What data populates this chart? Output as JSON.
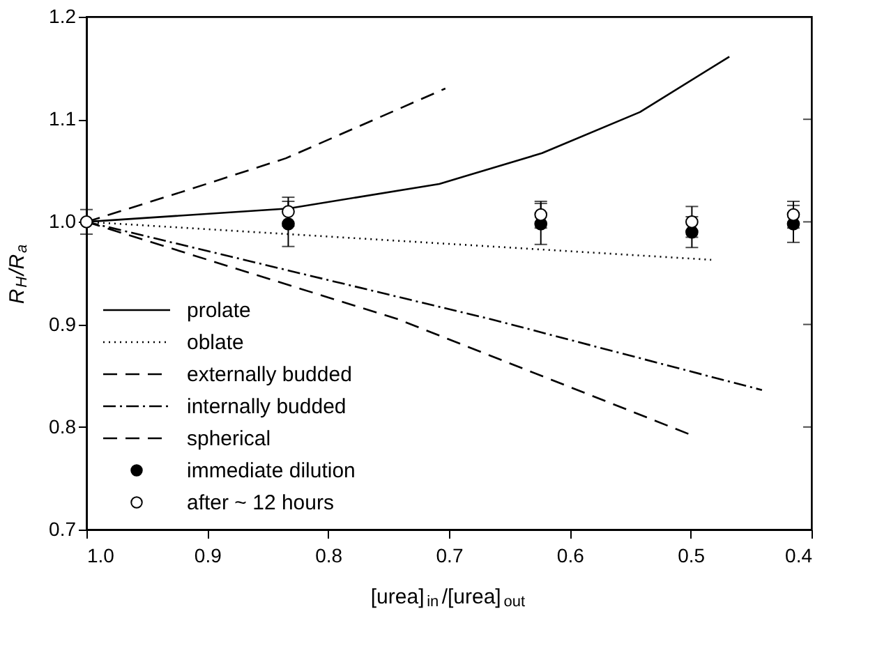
{
  "chart_data": {
    "type": "line",
    "xlabel": "[urea]$_{in}$/[urea]$_{out}$",
    "ylabel": "R$_{H}$/R$_{a}$",
    "xlim": [
      1.0,
      0.4
    ],
    "xticks": [
      {
        "value": 1.0,
        "label": "1.0"
      },
      0.9,
      0.8,
      0.7,
      0.6,
      0.5,
      0.4
    ],
    "ylim": [
      0.7,
      1.2
    ],
    "yticks": [
      0.7,
      0.8,
      0.9,
      {
        "value": 1.0,
        "label": "1.0"
      },
      1.1,
      1.2
    ],
    "grid": false,
    "legend": "bottom left",
    "series": [
      {
        "name": "prolate",
        "type": "line",
        "line_style": "solid",
        "color": "#000000",
        "x": [
          1.0,
          0.833,
          0.708,
          0.623,
          0.542,
          0.468
        ],
        "values": [
          1.0,
          1.013,
          1.037,
          1.067,
          1.107,
          1.161
        ]
      },
      {
        "name": "oblate",
        "type": "line",
        "line_style": "dotted",
        "color": "#000000",
        "x": [
          1.0,
          0.483
        ],
        "values": [
          1.0,
          0.963
        ]
      },
      {
        "name": "externally budded",
        "type": "line",
        "line_style": "dashed",
        "color": "#000000",
        "x": [
          1.0,
          0.919,
          0.835,
          0.703
        ],
        "values": [
          1.0,
          1.03,
          1.062,
          1.13
        ]
      },
      {
        "name": "internally budded",
        "type": "line",
        "line_style": "dashdot",
        "color": "#000000",
        "x": [
          1.0,
          0.665,
          0.441
        ],
        "values": [
          1.0,
          0.905,
          0.836
        ]
      },
      {
        "name": "spherical",
        "type": "line",
        "line_style": "dashed",
        "color": "#000000",
        "x": [
          1.0,
          0.742,
          0.499
        ],
        "values": [
          1.0,
          0.905,
          0.792
        ]
      },
      {
        "name": "immediate dilution",
        "type": "scatter",
        "marker": "circle",
        "color": "#000000",
        "x": [
          0.833,
          0.624,
          0.499,
          0.415
        ],
        "values": [
          0.998,
          0.998,
          0.99,
          0.998
        ],
        "errors": [
          0.022,
          0.02,
          0.015,
          0.018
        ]
      },
      {
        "name": "after ~ 12 hours",
        "type": "scatter",
        "marker": "circle",
        "color": "#ffffff",
        "x": [
          1.0,
          0.833,
          0.624,
          0.499,
          0.415
        ],
        "values": [
          1.0,
          1.01,
          1.007,
          1.0,
          1.007
        ],
        "errors": [
          0.012,
          0.014,
          0.013,
          0.015,
          0.013
        ]
      }
    ]
  }
}
